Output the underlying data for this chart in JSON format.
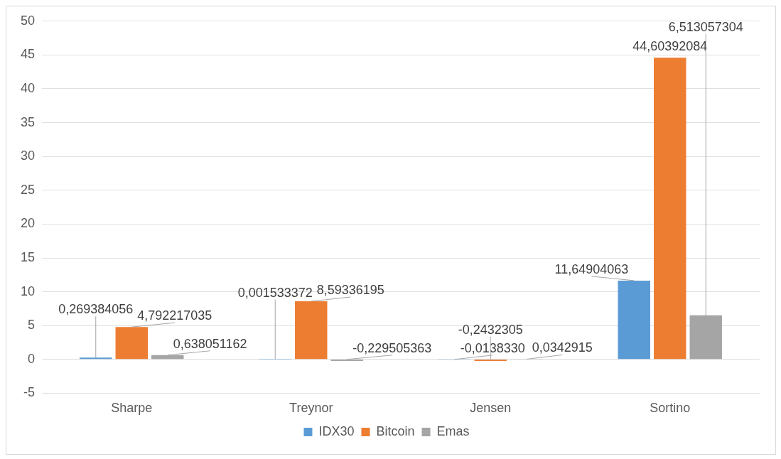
{
  "chart_data": {
    "type": "bar",
    "categories": [
      "Sharpe",
      "Treynor",
      "Jensen",
      "Sortino"
    ],
    "series": [
      {
        "name": "IDX30",
        "color": "#5b9bd5",
        "values": [
          0.269384056,
          0.001533372,
          -0.013833,
          11.64904063
        ],
        "value_labels": [
          "0,269384056",
          "0,001533372",
          "-0,0138330",
          "11,64904063"
        ]
      },
      {
        "name": "Bitcoin",
        "color": "#ed7d31",
        "values": [
          4.792217035,
          8.59336195,
          -0.2432305,
          44.60392084
        ],
        "value_labels": [
          "4,792217035",
          "8,59336195",
          "-0,2432305",
          "44,60392084"
        ]
      },
      {
        "name": "Emas",
        "color": "#a5a5a5",
        "values": [
          0.638051162,
          -0.229505363,
          0.0342915,
          6.513057304
        ],
        "value_labels": [
          "0,638051162",
          "-0,229505363",
          "0,0342915",
          "6,513057304"
        ]
      }
    ],
    "ylim": [
      -5,
      50
    ],
    "yticks": [
      -5,
      0,
      5,
      10,
      15,
      20,
      25,
      30,
      35,
      40,
      45,
      50
    ],
    "grid": "y",
    "legend": "bottom"
  }
}
